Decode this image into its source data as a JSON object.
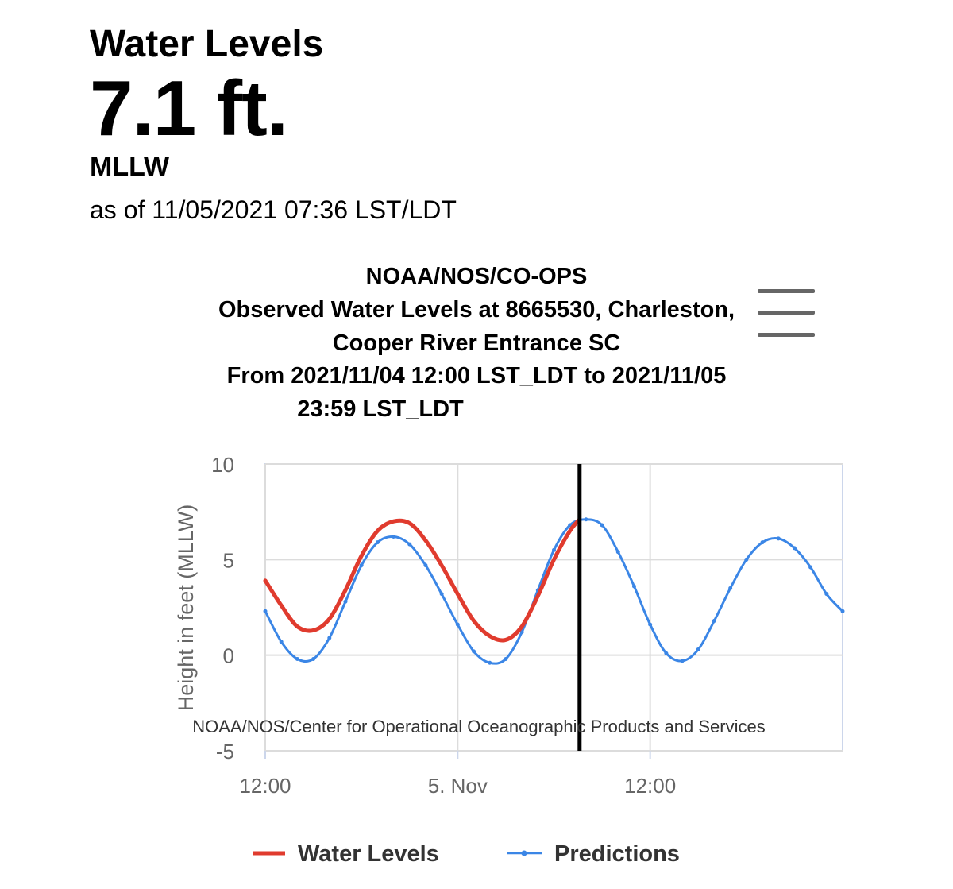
{
  "header": {
    "title": "Water Levels",
    "value": "7.1 ft.",
    "datum": "MLLW",
    "as_of": "as of 11/05/2021 07:36 LST/LDT"
  },
  "menu_icon": "hamburger-menu-icon",
  "colors": {
    "water_levels": "#e03b2e",
    "predictions": "#3b86e6",
    "grid": "#dcdcdc",
    "now_line": "#000000",
    "axis_text": "#666666"
  },
  "chart_data": {
    "type": "line",
    "title_lines": [
      "NOAA/NOS/CO-OPS",
      "Observed Water Levels at 8665530, Charleston,",
      "Cooper River Entrance SC",
      "From 2021/11/04 12:00 LST_LDT to 2021/11/05",
      "23:59 LST_LDT"
    ],
    "ylabel": "Height in feet (MLLW)",
    "xlabel": "",
    "ylim": [
      -5,
      10
    ],
    "yticks": [
      10,
      5,
      0,
      -5
    ],
    "xlim": [
      0,
      36
    ],
    "xticks": [
      {
        "value": 0,
        "label": "12:00"
      },
      {
        "value": 12,
        "label": "5. Nov"
      },
      {
        "value": 24,
        "label": "12:00"
      }
    ],
    "now_hours": 19.6,
    "credits": "NOAA/NOS/Center for Operational Oceanographic Products and Services",
    "series": [
      {
        "name": "Water Levels",
        "style": "line",
        "x": [
          0,
          1,
          2,
          3,
          4,
          5,
          6,
          7,
          8,
          9,
          10,
          11,
          12,
          13,
          14,
          15,
          16,
          17,
          18,
          19,
          19.6
        ],
        "y": [
          3.9,
          2.6,
          1.5,
          1.3,
          1.9,
          3.4,
          5.2,
          6.5,
          7.0,
          6.9,
          6.0,
          4.7,
          3.2,
          1.8,
          1.0,
          0.8,
          1.5,
          3.1,
          5.0,
          6.5,
          7.1
        ]
      },
      {
        "name": "Predictions",
        "style": "line-marker",
        "x": [
          0,
          1,
          2,
          3,
          4,
          5,
          6,
          7,
          8,
          9,
          10,
          11,
          12,
          13,
          14,
          15,
          16,
          17,
          18,
          19,
          20,
          21,
          22,
          23,
          24,
          25,
          26,
          27,
          28,
          29,
          30,
          31,
          32,
          33,
          34,
          35,
          36
        ],
        "y": [
          2.3,
          0.7,
          -0.2,
          -0.2,
          0.9,
          2.8,
          4.7,
          5.9,
          6.2,
          5.8,
          4.7,
          3.2,
          1.6,
          0.2,
          -0.4,
          -0.2,
          1.2,
          3.4,
          5.5,
          6.8,
          7.1,
          6.8,
          5.4,
          3.6,
          1.6,
          0.1,
          -0.3,
          0.3,
          1.8,
          3.5,
          5.0,
          5.9,
          6.1,
          5.6,
          4.6,
          3.2,
          2.3
        ]
      }
    ]
  }
}
